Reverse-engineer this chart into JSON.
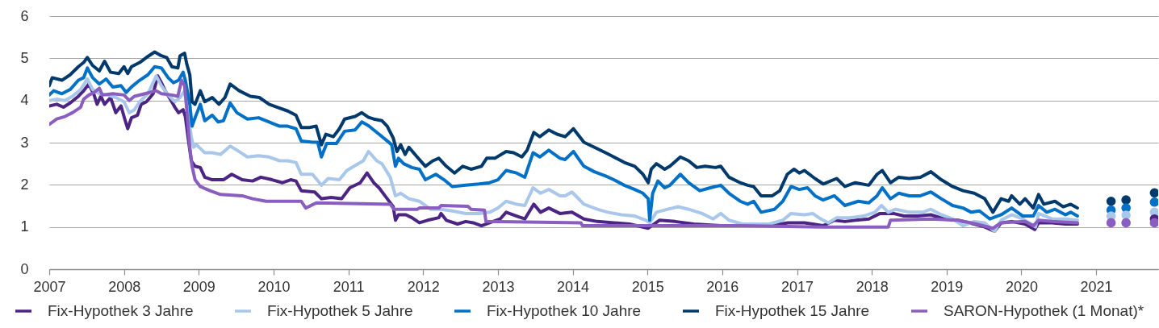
{
  "chart_data": {
    "type": "line",
    "xlim": [
      2007,
      2021.83
    ],
    "xticks": [
      2007,
      2008,
      2009,
      2010,
      2011,
      2012,
      2013,
      2014,
      2015,
      2016,
      2017,
      2018,
      2019,
      2020,
      2021
    ],
    "ylim": [
      0,
      6
    ],
    "yticks": [
      0,
      1,
      2,
      3,
      4,
      5,
      6
    ],
    "grid": "y",
    "legend": "bottom",
    "line_style": "solid",
    "series": [
      {
        "name": "Fix-Hypothek 3 Jahre",
        "color": "#4c2584",
        "x": [
          2007.0,
          2007.1,
          2007.19,
          2007.28,
          2007.39,
          2007.46,
          2007.53,
          2007.6,
          2007.64,
          2007.69,
          2007.74,
          2007.82,
          2007.89,
          2007.96,
          2008.01,
          2008.05,
          2008.1,
          2008.18,
          2008.23,
          2008.3,
          2008.39,
          2008.45,
          2008.5,
          2008.55,
          2008.63,
          2008.68,
          2008.73,
          2008.79,
          2008.82,
          2008.86,
          2008.9,
          2008.95,
          2009.02,
          2009.08,
          2009.18,
          2009.33,
          2009.44,
          2009.58,
          2009.72,
          2009.83,
          2009.98,
          2010.12,
          2010.23,
          2010.3,
          2010.37,
          2010.55,
          2010.64,
          2010.77,
          2010.91,
          2011.02,
          2011.16,
          2011.25,
          2011.34,
          2011.41,
          2011.52,
          2011.6,
          2011.63,
          2011.67,
          2011.77,
          2011.85,
          2011.95,
          2012.06,
          2012.21,
          2012.24,
          2012.31,
          2012.46,
          2012.57,
          2012.67,
          2012.78,
          2012.89,
          2013.03,
          2013.11,
          2013.25,
          2013.36,
          2013.48,
          2013.57,
          2013.68,
          2013.83,
          2013.99,
          2014.15,
          2014.33,
          2014.55,
          2014.76,
          2015.01,
          2015.16,
          2015.37,
          2015.62,
          2015.98,
          2016.63,
          2016.88,
          2017.1,
          2017.21,
          2017.35,
          2017.5,
          2017.64,
          2017.78,
          2017.96,
          2018.11,
          2018.29,
          2018.43,
          2018.61,
          2018.79,
          2018.97,
          2019.15,
          2019.37,
          2019.51,
          2019.64,
          2019.73,
          2019.87,
          2020.05,
          2020.18,
          2020.23,
          2020.41,
          2020.59,
          2020.75
        ],
        "values": [
          3.87,
          3.91,
          3.84,
          3.94,
          4.1,
          4.23,
          4.39,
          4.13,
          3.91,
          4.1,
          3.91,
          4.07,
          3.71,
          3.87,
          3.56,
          3.33,
          3.59,
          3.65,
          3.91,
          3.97,
          4.16,
          4.58,
          4.42,
          4.23,
          4.0,
          3.84,
          3.71,
          3.78,
          3.62,
          3.08,
          2.57,
          2.44,
          2.41,
          2.18,
          2.12,
          2.12,
          2.25,
          2.12,
          2.09,
          2.18,
          2.12,
          2.05,
          2.12,
          2.09,
          1.86,
          1.83,
          1.67,
          1.7,
          1.67,
          1.93,
          2.05,
          2.28,
          2.05,
          1.93,
          1.67,
          1.48,
          1.16,
          1.29,
          1.29,
          1.22,
          1.1,
          1.16,
          1.22,
          1.32,
          1.16,
          1.07,
          1.13,
          1.1,
          1.03,
          1.1,
          1.19,
          1.35,
          1.26,
          1.19,
          1.54,
          1.35,
          1.45,
          1.32,
          1.35,
          1.19,
          1.13,
          1.1,
          1.07,
          0.97,
          1.16,
          1.13,
          1.07,
          1.03,
          1.03,
          1.1,
          1.1,
          1.07,
          1.03,
          1.16,
          1.13,
          1.16,
          1.19,
          1.32,
          1.32,
          1.26,
          1.26,
          1.29,
          1.19,
          1.16,
          1.07,
          1.0,
          0.9,
          1.1,
          1.13,
          1.07,
          0.94,
          1.1,
          1.1,
          1.07,
          1.07
        ]
      },
      {
        "name": "Fix-Hypothek 5 Jahre",
        "color": "#a9c7ea",
        "x": [
          2007.0,
          2007.1,
          2007.21,
          2007.31,
          2007.42,
          2007.51,
          2007.58,
          2007.67,
          2007.78,
          2007.89,
          2008.0,
          2008.07,
          2008.14,
          2008.21,
          2008.32,
          2008.43,
          2008.5,
          2008.59,
          2008.68,
          2008.75,
          2008.81,
          2008.86,
          2008.9,
          2008.93,
          2008.97,
          2009.08,
          2009.18,
          2009.29,
          2009.42,
          2009.51,
          2009.65,
          2009.8,
          2009.94,
          2010.08,
          2010.19,
          2010.3,
          2010.37,
          2010.52,
          2010.64,
          2010.73,
          2010.88,
          2010.98,
          2011.13,
          2011.2,
          2011.27,
          2011.38,
          2011.45,
          2011.56,
          2011.63,
          2011.7,
          2011.81,
          2011.95,
          2012.1,
          2012.24,
          2012.39,
          2012.57,
          2012.75,
          2012.89,
          2013.0,
          2013.11,
          2013.25,
          2013.36,
          2013.47,
          2013.57,
          2013.68,
          2013.83,
          2013.9,
          2013.99,
          2014.15,
          2014.33,
          2014.47,
          2014.65,
          2014.83,
          2014.98,
          2015.03,
          2015.12,
          2015.27,
          2015.41,
          2015.55,
          2015.73,
          2015.88,
          2015.98,
          2016.09,
          2016.27,
          2016.63,
          2016.81,
          2016.92,
          2017.1,
          2017.21,
          2017.32,
          2017.42,
          2017.53,
          2017.71,
          2017.89,
          2018.04,
          2018.13,
          2018.22,
          2018.32,
          2018.5,
          2018.68,
          2018.79,
          2018.93,
          2019.08,
          2019.22,
          2019.37,
          2019.51,
          2019.64,
          2019.73,
          2019.87,
          2020.02,
          2020.19,
          2020.23,
          2020.41,
          2020.59,
          2020.75
        ],
        "values": [
          4.0,
          4.03,
          4.0,
          4.1,
          4.26,
          4.51,
          4.26,
          4.16,
          4.13,
          4.07,
          3.97,
          3.71,
          3.78,
          3.97,
          4.16,
          4.58,
          4.35,
          4.13,
          3.97,
          4.07,
          4.23,
          3.59,
          3.14,
          2.89,
          2.95,
          2.76,
          2.76,
          2.72,
          2.92,
          2.82,
          2.66,
          2.69,
          2.66,
          2.57,
          2.57,
          2.53,
          2.25,
          2.25,
          1.99,
          2.15,
          2.12,
          2.34,
          2.5,
          2.57,
          2.79,
          2.57,
          2.5,
          2.18,
          1.74,
          1.8,
          1.67,
          1.61,
          1.42,
          1.42,
          1.38,
          1.32,
          1.32,
          1.35,
          1.45,
          1.61,
          1.54,
          1.51,
          1.93,
          1.8,
          1.89,
          1.74,
          1.74,
          1.83,
          1.54,
          1.42,
          1.35,
          1.29,
          1.26,
          1.16,
          1.1,
          1.35,
          1.42,
          1.48,
          1.42,
          1.32,
          1.19,
          1.32,
          1.16,
          1.07,
          1.07,
          1.16,
          1.32,
          1.29,
          1.32,
          1.19,
          1.1,
          1.22,
          1.22,
          1.26,
          1.35,
          1.51,
          1.35,
          1.42,
          1.35,
          1.35,
          1.42,
          1.29,
          1.19,
          1.03,
          1.13,
          1.1,
          0.9,
          1.16,
          1.29,
          1.19,
          1.0,
          1.32,
          1.19,
          1.19,
          1.16
        ]
      },
      {
        "name": "Fix-Hypothek 10 Jahre",
        "color": "#0071c7",
        "x": [
          2007.0,
          2007.06,
          2007.17,
          2007.28,
          2007.39,
          2007.46,
          2007.51,
          2007.58,
          2007.67,
          2007.76,
          2007.85,
          2007.96,
          2008.03,
          2008.1,
          2008.21,
          2008.32,
          2008.41,
          2008.5,
          2008.59,
          2008.66,
          2008.73,
          2008.79,
          2008.82,
          2008.88,
          2008.91,
          2008.95,
          2009.02,
          2009.08,
          2009.18,
          2009.26,
          2009.33,
          2009.42,
          2009.51,
          2009.65,
          2009.8,
          2009.94,
          2010.08,
          2010.19,
          2010.3,
          2010.37,
          2010.52,
          2010.59,
          2010.64,
          2010.71,
          2010.84,
          2010.95,
          2011.09,
          2011.18,
          2011.27,
          2011.41,
          2011.52,
          2011.58,
          2011.63,
          2011.67,
          2011.74,
          2011.85,
          2011.95,
          2012.03,
          2012.17,
          2012.28,
          2012.39,
          2012.57,
          2012.75,
          2012.89,
          2013.0,
          2013.11,
          2013.25,
          2013.36,
          2013.47,
          2013.56,
          2013.68,
          2013.83,
          2013.9,
          2014.01,
          2014.15,
          2014.29,
          2014.44,
          2014.55,
          2014.69,
          2014.83,
          2014.94,
          2015.01,
          2015.03,
          2015.07,
          2015.14,
          2015.23,
          2015.3,
          2015.44,
          2015.55,
          2015.7,
          2015.84,
          2015.98,
          2016.09,
          2016.24,
          2016.34,
          2016.42,
          2016.52,
          2016.7,
          2016.81,
          2016.92,
          2017.03,
          2017.14,
          2017.24,
          2017.35,
          2017.5,
          2017.64,
          2017.82,
          2017.96,
          2018.07,
          2018.14,
          2018.25,
          2018.36,
          2018.5,
          2018.65,
          2018.79,
          2018.93,
          2019.08,
          2019.22,
          2019.33,
          2019.44,
          2019.58,
          2019.73,
          2019.87,
          2020.02,
          2020.16,
          2020.23,
          2020.34,
          2020.45,
          2020.59,
          2020.66,
          2020.75
        ],
        "values": [
          4.13,
          4.23,
          4.16,
          4.26,
          4.48,
          4.54,
          4.77,
          4.54,
          4.39,
          4.51,
          4.32,
          4.35,
          4.19,
          4.32,
          4.48,
          4.61,
          4.8,
          4.77,
          4.54,
          4.42,
          4.48,
          4.67,
          4.48,
          3.91,
          3.39,
          3.59,
          3.91,
          3.52,
          3.65,
          3.49,
          3.52,
          3.94,
          3.71,
          3.56,
          3.59,
          3.49,
          3.39,
          3.39,
          3.33,
          3.04,
          3.01,
          3.01,
          2.66,
          2.98,
          2.98,
          3.27,
          3.3,
          3.49,
          3.4,
          3.2,
          3.04,
          2.95,
          2.44,
          2.63,
          2.5,
          2.41,
          2.37,
          2.12,
          2.25,
          2.12,
          1.96,
          1.99,
          2.02,
          2.05,
          2.12,
          2.34,
          2.28,
          2.18,
          2.76,
          2.66,
          2.82,
          2.63,
          2.6,
          2.79,
          2.44,
          2.31,
          2.21,
          2.12,
          1.99,
          1.89,
          1.8,
          1.67,
          1.16,
          1.8,
          2.09,
          1.93,
          1.99,
          2.25,
          2.05,
          1.86,
          1.93,
          1.99,
          1.8,
          1.61,
          1.54,
          1.61,
          1.35,
          1.42,
          1.61,
          1.96,
          1.89,
          1.93,
          1.74,
          1.64,
          1.74,
          1.51,
          1.61,
          1.57,
          1.74,
          1.93,
          1.67,
          1.8,
          1.74,
          1.74,
          1.83,
          1.67,
          1.51,
          1.45,
          1.35,
          1.38,
          1.19,
          1.29,
          1.45,
          1.26,
          1.26,
          1.51,
          1.35,
          1.42,
          1.29,
          1.35,
          1.26
        ]
      },
      {
        "name": "Fix-Hypothek 15 Jahre",
        "color": "#003a6d",
        "x": [
          2007.0,
          2007.04,
          2007.17,
          2007.28,
          2007.39,
          2007.46,
          2007.51,
          2007.58,
          2007.67,
          2007.74,
          2007.82,
          2007.93,
          2008.0,
          2008.05,
          2008.1,
          2008.21,
          2008.3,
          2008.41,
          2008.5,
          2008.57,
          2008.64,
          2008.72,
          2008.75,
          2008.81,
          2008.84,
          2008.88,
          2008.91,
          2008.95,
          2009.02,
          2009.08,
          2009.18,
          2009.27,
          2009.35,
          2009.42,
          2009.54,
          2009.69,
          2009.81,
          2009.94,
          2010.05,
          2010.19,
          2010.3,
          2010.37,
          2010.48,
          2010.57,
          2010.64,
          2010.7,
          2010.8,
          2010.88,
          2010.95,
          2011.09,
          2011.18,
          2011.27,
          2011.34,
          2011.45,
          2011.52,
          2011.6,
          2011.65,
          2011.7,
          2011.76,
          2011.81,
          2011.92,
          2012.03,
          2012.13,
          2012.21,
          2012.31,
          2012.42,
          2012.53,
          2012.64,
          2012.78,
          2012.85,
          2012.96,
          2013.11,
          2013.21,
          2013.32,
          2013.39,
          2013.48,
          2013.56,
          2013.68,
          2013.79,
          2013.9,
          2014.01,
          2014.15,
          2014.29,
          2014.44,
          2014.55,
          2014.69,
          2014.83,
          2014.94,
          2015.01,
          2015.05,
          2015.12,
          2015.23,
          2015.3,
          2015.44,
          2015.55,
          2015.66,
          2015.77,
          2015.91,
          2015.98,
          2016.09,
          2016.24,
          2016.34,
          2016.42,
          2016.52,
          2016.67,
          2016.77,
          2016.87,
          2016.96,
          2017.03,
          2017.1,
          2017.24,
          2017.35,
          2017.53,
          2017.64,
          2017.78,
          2017.96,
          2018.07,
          2018.14,
          2018.25,
          2018.36,
          2018.5,
          2018.65,
          2018.79,
          2018.93,
          2019.08,
          2019.22,
          2019.37,
          2019.51,
          2019.62,
          2019.73,
          2019.83,
          2019.87,
          2019.98,
          2020.05,
          2020.16,
          2020.23,
          2020.3,
          2020.45,
          2020.56,
          2020.66,
          2020.75
        ],
        "values": [
          4.35,
          4.54,
          4.48,
          4.61,
          4.8,
          4.9,
          5.02,
          4.83,
          4.7,
          4.93,
          4.67,
          4.64,
          4.8,
          4.64,
          4.8,
          4.9,
          5.02,
          5.15,
          5.06,
          5.02,
          4.8,
          4.77,
          5.06,
          5.12,
          4.86,
          4.61,
          3.97,
          3.91,
          4.23,
          3.97,
          4.07,
          3.91,
          4.07,
          4.39,
          4.23,
          4.1,
          4.07,
          3.91,
          3.84,
          3.75,
          3.65,
          3.36,
          3.36,
          3.39,
          2.95,
          3.2,
          3.14,
          3.33,
          3.56,
          3.62,
          3.71,
          3.6,
          3.56,
          3.52,
          3.39,
          3.11,
          2.79,
          2.95,
          2.72,
          2.89,
          2.66,
          2.44,
          2.57,
          2.63,
          2.44,
          2.28,
          2.44,
          2.37,
          2.44,
          2.63,
          2.63,
          2.79,
          2.76,
          2.66,
          2.82,
          3.24,
          3.14,
          3.3,
          3.2,
          3.14,
          3.33,
          3.01,
          2.89,
          2.76,
          2.66,
          2.53,
          2.44,
          2.25,
          2.05,
          2.37,
          2.5,
          2.37,
          2.44,
          2.66,
          2.57,
          2.41,
          2.44,
          2.41,
          2.44,
          2.18,
          2.05,
          1.99,
          1.96,
          1.74,
          1.74,
          1.86,
          2.25,
          2.37,
          2.28,
          2.34,
          2.15,
          2.02,
          2.15,
          1.96,
          2.05,
          1.99,
          2.25,
          2.34,
          2.05,
          2.18,
          2.15,
          2.18,
          2.31,
          2.12,
          1.96,
          1.86,
          1.8,
          1.67,
          1.35,
          1.67,
          1.61,
          1.74,
          1.54,
          1.67,
          1.45,
          1.77,
          1.54,
          1.61,
          1.48,
          1.54,
          1.45
        ]
      },
      {
        "name": "SARON-Hypothek (1 Monat)*",
        "color": "#8a5dc1",
        "x": [
          2007.0,
          2007.1,
          2007.21,
          2007.31,
          2007.42,
          2007.46,
          2007.53,
          2007.6,
          2007.67,
          2007.71,
          2007.85,
          2008.0,
          2008.07,
          2008.14,
          2008.28,
          2008.43,
          2008.5,
          2008.64,
          2008.72,
          2008.77,
          2008.81,
          2008.84,
          2008.88,
          2008.91,
          2008.95,
          2009.02,
          2009.15,
          2009.29,
          2009.58,
          2009.72,
          2009.9,
          2010.37,
          2010.43,
          2010.57,
          2011.31,
          2011.56,
          2011.61,
          2011.92,
          2011.95,
          2012.21,
          2012.24,
          2012.6,
          2012.64,
          2012.82,
          2012.84,
          2014.11,
          2014.13,
          2016.27,
          2017.35,
          2018.22,
          2018.25,
          2018.79,
          2019.15,
          2019.4,
          2019.62,
          2019.73,
          2020.05,
          2020.16,
          2020.23,
          2020.41,
          2020.75
        ],
        "values": [
          3.43,
          3.56,
          3.62,
          3.71,
          3.84,
          4.03,
          4.13,
          4.19,
          4.29,
          4.13,
          4.16,
          4.13,
          4.0,
          4.1,
          4.16,
          4.23,
          4.16,
          4.13,
          4.1,
          4.48,
          4.35,
          3.78,
          2.89,
          2.44,
          2.12,
          1.96,
          1.86,
          1.77,
          1.74,
          1.67,
          1.61,
          1.61,
          1.45,
          1.57,
          1.55,
          1.54,
          1.42,
          1.42,
          1.45,
          1.45,
          1.51,
          1.49,
          1.42,
          1.4,
          1.13,
          1.1,
          1.03,
          1.03,
          1.0,
          1.0,
          1.16,
          1.19,
          1.16,
          1.07,
          0.97,
          1.1,
          1.13,
          1.03,
          1.16,
          1.13,
          1.1
        ]
      },
      {
        "type": "scatter",
        "marker": "circle",
        "color": "#003a6d",
        "x": [
          2021.2,
          2021.4,
          2021.78
        ],
        "values": [
          1.61,
          1.64,
          1.81
        ]
      },
      {
        "type": "scatter",
        "marker": "circle",
        "color": "#0071c7",
        "x": [
          2021.2,
          2021.4,
          2021.78
        ],
        "values": [
          1.4,
          1.45,
          1.59
        ]
      },
      {
        "type": "scatter",
        "marker": "circle",
        "color": "#a9c7ea",
        "x": [
          2021.2,
          2021.4,
          2021.78
        ],
        "values": [
          1.26,
          1.28,
          1.35
        ]
      },
      {
        "type": "scatter",
        "marker": "circle",
        "color": "#4c2584",
        "x": [
          2021.78
        ],
        "values": [
          1.19
        ]
      },
      {
        "type": "scatter",
        "marker": "circle",
        "color": "#8a5dc1",
        "x": [
          2021.2,
          2021.4,
          2021.78
        ],
        "values": [
          1.1,
          1.1,
          1.1
        ]
      }
    ]
  }
}
